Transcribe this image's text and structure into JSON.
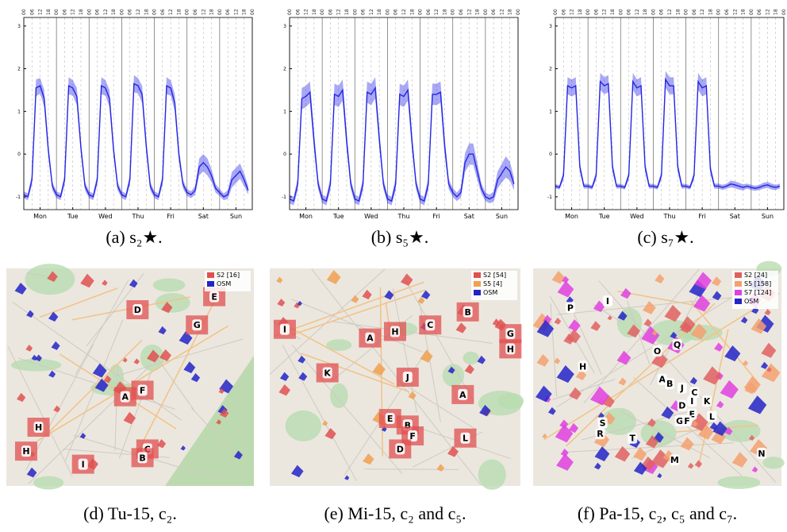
{
  "chart_data": [
    {
      "type": "line",
      "caption": "(a) s₂★.",
      "color": "#2525e6",
      "x": [
        0,
        3,
        6,
        9,
        12,
        15,
        18,
        21,
        24,
        27,
        30,
        33,
        36,
        39,
        42,
        45,
        48,
        51,
        54,
        57,
        60,
        63,
        66,
        69,
        72,
        75,
        78,
        81,
        84,
        87,
        90,
        93,
        96,
        99,
        102,
        105,
        108,
        111,
        114,
        117,
        120,
        123,
        126,
        129,
        132,
        135,
        138,
        141,
        144,
        147,
        150,
        153,
        156,
        159,
        162,
        165
      ],
      "values": [
        -0.95,
        -1.0,
        -0.6,
        1.55,
        1.6,
        1.3,
        0.1,
        -0.75,
        -0.95,
        -1.0,
        -0.6,
        1.6,
        1.55,
        1.35,
        0.15,
        -0.75,
        -0.95,
        -1.0,
        -0.6,
        1.6,
        1.55,
        1.3,
        0.1,
        -0.75,
        -0.95,
        -1.0,
        -0.6,
        1.65,
        1.6,
        1.4,
        0.2,
        -0.75,
        -0.95,
        -1.0,
        -0.6,
        1.6,
        1.55,
        1.2,
        0.0,
        -0.7,
        -0.9,
        -0.95,
        -0.85,
        -0.3,
        -0.2,
        -0.3,
        -0.5,
        -0.8,
        -0.9,
        -1.0,
        -0.95,
        -0.6,
        -0.5,
        -0.4,
        -0.6,
        -0.85
      ],
      "error": [
        0.08,
        0.08,
        0.12,
        0.2,
        0.18,
        0.2,
        0.15,
        0.1,
        0.08,
        0.08,
        0.12,
        0.2,
        0.18,
        0.2,
        0.15,
        0.1,
        0.08,
        0.08,
        0.12,
        0.2,
        0.18,
        0.2,
        0.15,
        0.1,
        0.08,
        0.08,
        0.12,
        0.2,
        0.18,
        0.2,
        0.15,
        0.1,
        0.08,
        0.08,
        0.12,
        0.2,
        0.18,
        0.2,
        0.15,
        0.1,
        0.08,
        0.08,
        0.1,
        0.2,
        0.2,
        0.2,
        0.15,
        0.1,
        0.08,
        0.08,
        0.1,
        0.18,
        0.18,
        0.18,
        0.15,
        0.1
      ],
      "xlim": [
        0,
        168
      ],
      "ylim": [
        -1.3,
        3.2
      ],
      "yticks": [
        -1,
        0,
        1,
        2,
        3
      ],
      "xticks": [
        {
          "value": 12,
          "label": "Mon"
        },
        {
          "value": 36,
          "label": "Tue"
        },
        {
          "value": 60,
          "label": "Wed"
        },
        {
          "value": 84,
          "label": "Thu"
        },
        {
          "value": 108,
          "label": "Fri"
        },
        {
          "value": 132,
          "label": "Sat"
        },
        {
          "value": 156,
          "label": "Sun"
        }
      ],
      "x2ticks": [
        {
          "value": 0,
          "label": "00"
        },
        {
          "value": 6,
          "label": "06"
        },
        12,
        18,
        {
          "value": 24,
          "label": "00"
        },
        {
          "value": 30,
          "label": "06"
        },
        {
          "value": 36,
          "label": "12"
        },
        {
          "value": 42,
          "label": "18"
        },
        {
          "value": 48,
          "label": "00"
        },
        {
          "value": 54,
          "label": "06"
        },
        {
          "value": 60,
          "label": "12"
        },
        {
          "value": 66,
          "label": "18"
        },
        {
          "value": 72,
          "label": "00"
        },
        {
          "value": 78,
          "label": "06"
        },
        {
          "value": 84,
          "label": "12"
        },
        {
          "value": 90,
          "label": "18"
        },
        {
          "value": 96,
          "label": "00"
        },
        {
          "value": 102,
          "label": "06"
        },
        {
          "value": 108,
          "label": "12"
        },
        {
          "value": 114,
          "label": "18"
        },
        {
          "value": 120,
          "label": "00"
        },
        {
          "value": 126,
          "label": "06"
        },
        {
          "value": 132,
          "label": "12"
        },
        {
          "value": 138,
          "label": "18"
        },
        {
          "value": 144,
          "label": "00"
        },
        {
          "value": 150,
          "label": "06"
        },
        {
          "value": 156,
          "label": "12"
        },
        {
          "value": 162,
          "label": "18"
        },
        {
          "value": 168,
          "label": "00"
        }
      ]
    },
    {
      "type": "line",
      "caption": "(b) s₅★.",
      "color": "#2525e6",
      "x": [
        0,
        3,
        6,
        9,
        12,
        15,
        18,
        21,
        24,
        27,
        30,
        33,
        36,
        39,
        42,
        45,
        48,
        51,
        54,
        57,
        60,
        63,
        66,
        69,
        72,
        75,
        78,
        81,
        84,
        87,
        90,
        93,
        96,
        99,
        102,
        105,
        108,
        111,
        114,
        117,
        120,
        123,
        126,
        129,
        132,
        135,
        138,
        141,
        144,
        147,
        150,
        153,
        156,
        159,
        162,
        165
      ],
      "values": [
        -1.05,
        -1.1,
        -0.7,
        1.3,
        1.35,
        1.45,
        0.3,
        -0.7,
        -1.05,
        -1.1,
        -0.7,
        1.4,
        1.35,
        1.5,
        0.3,
        -0.7,
        -1.05,
        -1.1,
        -0.7,
        1.45,
        1.4,
        1.55,
        0.35,
        -0.7,
        -1.05,
        -1.1,
        -0.7,
        1.4,
        1.35,
        1.5,
        0.3,
        -0.7,
        -1.05,
        -1.1,
        -0.7,
        1.4,
        1.4,
        1.45,
        0.2,
        -0.7,
        -0.9,
        -1.0,
        -0.9,
        -0.2,
        0.0,
        0.0,
        -0.4,
        -0.8,
        -1.0,
        -1.05,
        -1.0,
        -0.6,
        -0.45,
        -0.3,
        -0.4,
        -0.7
      ],
      "error": [
        0.1,
        0.1,
        0.15,
        0.25,
        0.25,
        0.25,
        0.2,
        0.12,
        0.1,
        0.1,
        0.15,
        0.25,
        0.25,
        0.25,
        0.2,
        0.12,
        0.1,
        0.1,
        0.15,
        0.25,
        0.25,
        0.25,
        0.2,
        0.12,
        0.1,
        0.1,
        0.15,
        0.25,
        0.25,
        0.25,
        0.2,
        0.12,
        0.1,
        0.1,
        0.15,
        0.25,
        0.25,
        0.25,
        0.2,
        0.12,
        0.1,
        0.1,
        0.12,
        0.22,
        0.25,
        0.25,
        0.2,
        0.12,
        0.1,
        0.1,
        0.12,
        0.2,
        0.22,
        0.25,
        0.22,
        0.15
      ],
      "xlim": [
        0,
        168
      ],
      "ylim": [
        -1.3,
        3.2
      ],
      "yticks": [
        -1,
        0,
        1,
        2,
        3
      ],
      "xticks": [
        {
          "value": 12,
          "label": "Mon"
        },
        {
          "value": 36,
          "label": "Tue"
        },
        {
          "value": 60,
          "label": "Wed"
        },
        {
          "value": 84,
          "label": "Thu"
        },
        {
          "value": 108,
          "label": "Fri"
        },
        {
          "value": 132,
          "label": "Sat"
        },
        {
          "value": 156,
          "label": "Sun"
        }
      ],
      "x2ticks": [
        {
          "value": 0,
          "label": "00"
        },
        {
          "value": 6,
          "label": "06"
        },
        12,
        18,
        {
          "value": 24,
          "label": "00"
        },
        {
          "value": 30,
          "label": "06"
        },
        {
          "value": 36,
          "label": "12"
        },
        {
          "value": 42,
          "label": "18"
        },
        {
          "value": 48,
          "label": "00"
        },
        {
          "value": 54,
          "label": "06"
        },
        {
          "value": 60,
          "label": "12"
        },
        {
          "value": 66,
          "label": "18"
        },
        {
          "value": 72,
          "label": "00"
        },
        {
          "value": 78,
          "label": "06"
        },
        {
          "value": 84,
          "label": "12"
        },
        {
          "value": 90,
          "label": "18"
        },
        {
          "value": 96,
          "label": "00"
        },
        {
          "value": 102,
          "label": "06"
        },
        {
          "value": 108,
          "label": "12"
        },
        {
          "value": 114,
          "label": "18"
        },
        {
          "value": 120,
          "label": "00"
        },
        {
          "value": 126,
          "label": "06"
        },
        {
          "value": 132,
          "label": "12"
        },
        {
          "value": 138,
          "label": "18"
        },
        {
          "value": 144,
          "label": "00"
        },
        {
          "value": 150,
          "label": "06"
        },
        {
          "value": 156,
          "label": "12"
        },
        {
          "value": 162,
          "label": "18"
        },
        {
          "value": 168,
          "label": "00"
        }
      ]
    },
    {
      "type": "line",
      "caption": "(c) s₇★.",
      "color": "#2525e6",
      "x": [
        0,
        3,
        6,
        9,
        12,
        15,
        18,
        21,
        24,
        27,
        30,
        33,
        36,
        39,
        42,
        45,
        48,
        51,
        54,
        57,
        60,
        63,
        66,
        69,
        72,
        75,
        78,
        81,
        84,
        87,
        90,
        93,
        96,
        99,
        102,
        105,
        108,
        111,
        114,
        117,
        120,
        123,
        126,
        129,
        132,
        135,
        138,
        141,
        144,
        147,
        150,
        153,
        156,
        159,
        162,
        165
      ],
      "values": [
        -0.75,
        -0.78,
        -0.5,
        1.6,
        1.55,
        1.6,
        -0.3,
        -0.75,
        -0.75,
        -0.78,
        -0.5,
        1.7,
        1.6,
        1.65,
        -0.3,
        -0.75,
        -0.75,
        -0.78,
        -0.5,
        1.7,
        1.55,
        1.6,
        -0.3,
        -0.75,
        -0.75,
        -0.78,
        -0.5,
        1.75,
        1.6,
        1.6,
        -0.3,
        -0.75,
        -0.75,
        -0.78,
        -0.5,
        1.7,
        1.55,
        1.6,
        -0.35,
        -0.75,
        -0.75,
        -0.78,
        -0.75,
        -0.7,
        -0.72,
        -0.75,
        -0.78,
        -0.75,
        -0.78,
        -0.8,
        -0.78,
        -0.74,
        -0.72,
        -0.76,
        -0.78,
        -0.75
      ],
      "error": [
        0.05,
        0.05,
        0.1,
        0.2,
        0.2,
        0.2,
        0.12,
        0.06,
        0.05,
        0.05,
        0.1,
        0.2,
        0.2,
        0.2,
        0.12,
        0.06,
        0.05,
        0.05,
        0.1,
        0.2,
        0.2,
        0.2,
        0.12,
        0.06,
        0.05,
        0.05,
        0.1,
        0.2,
        0.2,
        0.2,
        0.12,
        0.06,
        0.05,
        0.05,
        0.1,
        0.2,
        0.2,
        0.2,
        0.12,
        0.06,
        0.06,
        0.06,
        0.06,
        0.08,
        0.08,
        0.08,
        0.07,
        0.06,
        0.06,
        0.06,
        0.06,
        0.07,
        0.07,
        0.07,
        0.06,
        0.06
      ],
      "xlim": [
        0,
        168
      ],
      "ylim": [
        -1.3,
        3.2
      ],
      "yticks": [
        -1,
        0,
        1,
        2,
        3
      ],
      "xticks": [
        {
          "value": 12,
          "label": "Mon"
        },
        {
          "value": 36,
          "label": "Tue"
        },
        {
          "value": 60,
          "label": "Wed"
        },
        {
          "value": 84,
          "label": "Thu"
        },
        {
          "value": 108,
          "label": "Fri"
        },
        {
          "value": 132,
          "label": "Sat"
        },
        {
          "value": 156,
          "label": "Sun"
        }
      ],
      "x2ticks": [
        {
          "value": 0,
          "label": "00"
        },
        {
          "value": 6,
          "label": "06"
        },
        12,
        18,
        {
          "value": 24,
          "label": "00"
        },
        {
          "value": 30,
          "label": "06"
        },
        {
          "value": 36,
          "label": "12"
        },
        {
          "value": 42,
          "label": "18"
        },
        {
          "value": 48,
          "label": "00"
        },
        {
          "value": 54,
          "label": "06"
        },
        {
          "value": 60,
          "label": "12"
        },
        {
          "value": 66,
          "label": "18"
        },
        {
          "value": 72,
          "label": "00"
        },
        {
          "value": 78,
          "label": "06"
        },
        {
          "value": 84,
          "label": "12"
        },
        {
          "value": 90,
          "label": "18"
        },
        {
          "value": 96,
          "label": "00"
        },
        {
          "value": 102,
          "label": "06"
        },
        {
          "value": 108,
          "label": "12"
        },
        {
          "value": 114,
          "label": "18"
        },
        {
          "value": 120,
          "label": "00"
        },
        {
          "value": 126,
          "label": "06"
        },
        {
          "value": 132,
          "label": "12"
        },
        {
          "value": 138,
          "label": "18"
        },
        {
          "value": 144,
          "label": "00"
        },
        {
          "value": 150,
          "label": "06"
        },
        {
          "value": 156,
          "label": "12"
        },
        {
          "value": 162,
          "label": "18"
        },
        {
          "value": 168,
          "label": "00"
        }
      ]
    }
  ],
  "maps": [
    {
      "caption": "(d) Tu-15, c₂.",
      "legend": [
        {
          "label": "S2 [16]",
          "color": "#e05050"
        },
        {
          "label": "OSM",
          "color": "#2323c8"
        }
      ],
      "labels": [
        "D",
        "E",
        "G",
        "A",
        "F",
        "H",
        "H",
        "C",
        "B",
        "I"
      ]
    },
    {
      "caption": "(e) Mi-15, c₂ and c₅.",
      "legend": [
        {
          "label": "S2 [54]",
          "color": "#e05050"
        },
        {
          "label": "S5 [4]",
          "color": "#f0a050"
        },
        {
          "label": "OSM",
          "color": "#2323c8"
        }
      ],
      "labels": [
        "I",
        "A",
        "H",
        "C",
        "B",
        "G",
        "H",
        "K",
        "J",
        "A",
        "E",
        "B",
        "F",
        "D",
        "L"
      ]
    },
    {
      "caption": "(f) Pa-15, c₂, c₅ and c₇.",
      "legend": [
        {
          "label": "S2 [24]",
          "color": "#e06060"
        },
        {
          "label": "S5 [158]",
          "color": "#f4a070"
        },
        {
          "label": "S7 [124]",
          "color": "#e040e0"
        },
        {
          "label": "OSM",
          "color": "#2323c8"
        }
      ],
      "labels": [
        "P",
        "I",
        "O",
        "Q",
        "H",
        "A",
        "B",
        "J",
        "C",
        "K",
        "D",
        "I",
        "E",
        "L",
        "G",
        "F",
        "S",
        "R",
        "T",
        "M",
        "N"
      ]
    }
  ]
}
